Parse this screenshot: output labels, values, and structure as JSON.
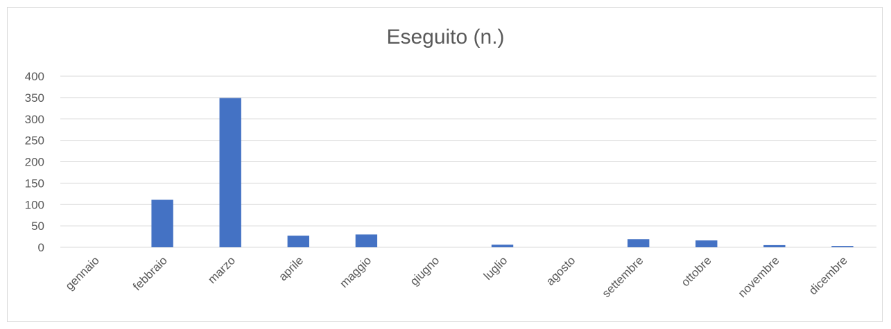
{
  "chart_data": {
    "type": "bar",
    "title": "Eseguito (n.)",
    "xlabel": "",
    "ylabel": "",
    "categories": [
      "gennaio",
      "febbraio",
      "marzo",
      "aprile",
      "maggio",
      "giugno",
      "luglio",
      "agosto",
      "settembre",
      "ottobre",
      "novembre",
      "dicembre"
    ],
    "values": [
      0,
      111,
      349,
      27,
      30,
      0,
      6,
      0,
      19,
      16,
      5,
      3
    ],
    "ylim": [
      0,
      400
    ],
    "yticks": [
      0,
      50,
      100,
      150,
      200,
      250,
      300,
      350,
      400
    ],
    "grid": true,
    "legend": "none",
    "bar_color": "#4472c4",
    "grid_color": "#d9d9d9"
  }
}
